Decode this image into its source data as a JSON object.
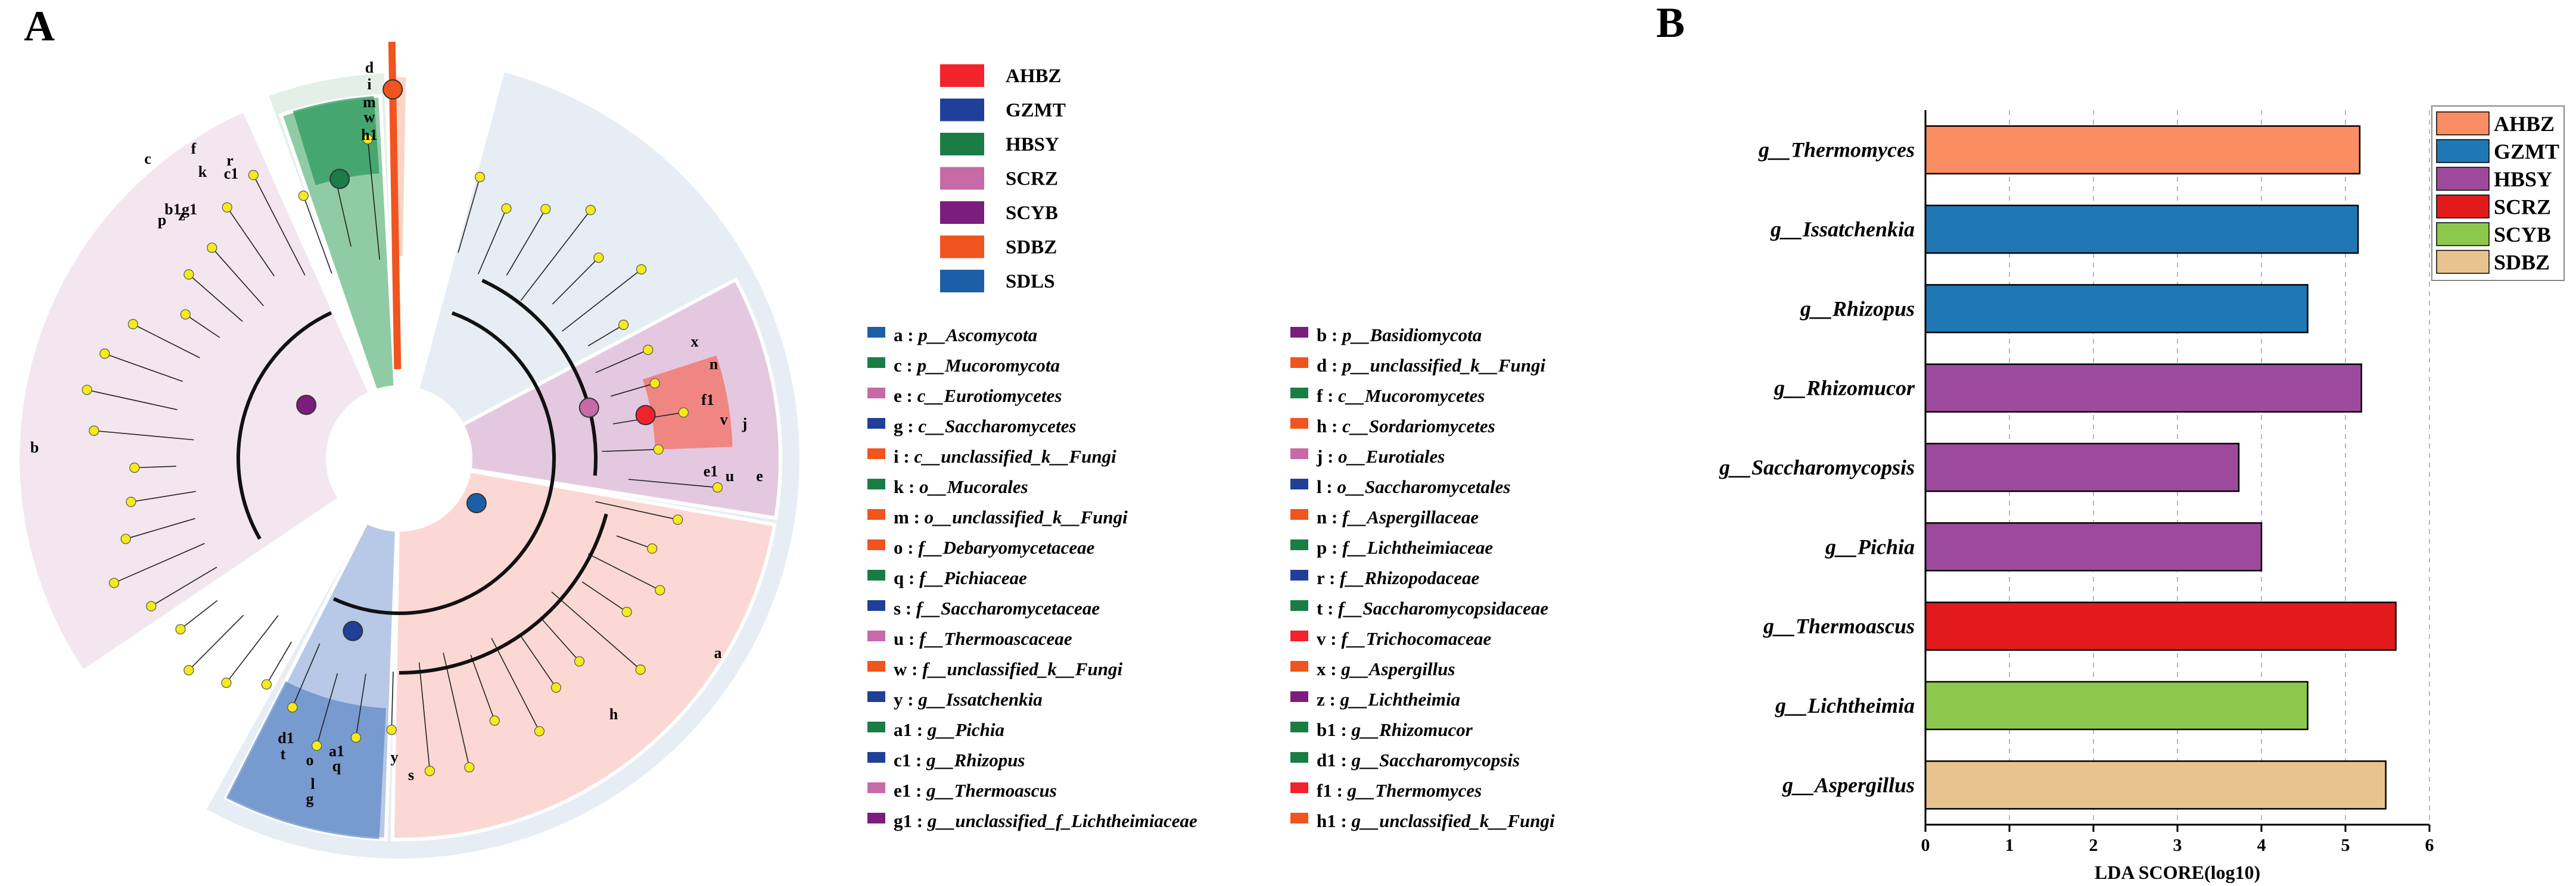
{
  "panels": {
    "a": "A",
    "b": "B"
  },
  "cladogram": {
    "group_legend": [
      {
        "name": "AHBZ",
        "color": "#f2232b"
      },
      {
        "name": "GZMT",
        "color": "#1f3f99"
      },
      {
        "name": "HBSY",
        "color": "#1a7d46"
      },
      {
        "name": "SCRZ",
        "color": "#c66aa8"
      },
      {
        "name": "SCYB",
        "color": "#7b1d7c"
      },
      {
        "name": "SDBZ",
        "color": "#f0541f"
      },
      {
        "name": "SDLS",
        "color": "#1d5fa6"
      }
    ],
    "taxa": [
      {
        "key": "a",
        "label": "p__Ascomycota",
        "color": "#1d5fa6"
      },
      {
        "key": "b",
        "label": "p__Basidiomycota",
        "color": "#7b1d7c"
      },
      {
        "key": "c",
        "label": "p__Mucoromycota",
        "color": "#1a7d46"
      },
      {
        "key": "d",
        "label": "p__unclassified_k__Fungi",
        "color": "#f0541f"
      },
      {
        "key": "e",
        "label": "c__Eurotiomycetes",
        "color": "#c66aa8"
      },
      {
        "key": "f",
        "label": "c__Mucoromycetes",
        "color": "#1a7d46"
      },
      {
        "key": "g",
        "label": "c__Saccharomycetes",
        "color": "#1f3f99"
      },
      {
        "key": "h",
        "label": "c__Sordariomycetes",
        "color": "#f0541f"
      },
      {
        "key": "i",
        "label": "c__unclassified_k__Fungi",
        "color": "#f0541f"
      },
      {
        "key": "j",
        "label": "o__Eurotiales",
        "color": "#c66aa8"
      },
      {
        "key": "k",
        "label": "o__Mucorales",
        "color": "#1a7d46"
      },
      {
        "key": "l",
        "label": "o__Saccharomycetales",
        "color": "#1f3f99"
      },
      {
        "key": "m",
        "label": "o__unclassified_k__Fungi",
        "color": "#f0541f"
      },
      {
        "key": "n",
        "label": "f__Aspergillaceae",
        "color": "#f0541f"
      },
      {
        "key": "o",
        "label": "f__Debaryomycetaceae",
        "color": "#f0541f"
      },
      {
        "key": "p",
        "label": "f__Lichtheimiaceae",
        "color": "#1a7d46"
      },
      {
        "key": "q",
        "label": "f__Pichiaceae",
        "color": "#1a7d46"
      },
      {
        "key": "r",
        "label": "f__Rhizopodaceae",
        "color": "#1f3f99"
      },
      {
        "key": "s",
        "label": "f__Saccharomycetaceae",
        "color": "#1f3f99"
      },
      {
        "key": "t",
        "label": "f__Saccharomycopsidaceae",
        "color": "#1a7d46"
      },
      {
        "key": "u",
        "label": "f__Thermoascaceae",
        "color": "#c66aa8"
      },
      {
        "key": "v",
        "label": "f__Trichocomaceae",
        "color": "#f2232b"
      },
      {
        "key": "w",
        "label": "f__unclassified_k__Fungi",
        "color": "#f0541f"
      },
      {
        "key": "x",
        "label": "g__Aspergillus",
        "color": "#f0541f"
      },
      {
        "key": "y",
        "label": "g__Issatchenkia",
        "color": "#1f3f99"
      },
      {
        "key": "z",
        "label": "g__Lichtheimia",
        "color": "#7b1d7c"
      },
      {
        "key": "a1",
        "label": "g__Pichia",
        "color": "#1a7d46"
      },
      {
        "key": "b1",
        "label": "g__Rhizomucor",
        "color": "#1a7d46"
      },
      {
        "key": "c1",
        "label": "g__Rhizopus",
        "color": "#1f3f99"
      },
      {
        "key": "d1",
        "label": "g__Saccharomycopsis",
        "color": "#1a7d46"
      },
      {
        "key": "e1",
        "label": "g__Thermoascus",
        "color": "#c66aa8"
      },
      {
        "key": "f1",
        "label": "g__Thermomyces",
        "color": "#f2232b"
      },
      {
        "key": "g1",
        "label": "g__unclassified_f_Lichtheimiaceae",
        "color": "#7b1d7c"
      },
      {
        "key": "h1",
        "label": "g__unclassified_k__Fungi",
        "color": "#f0541f"
      }
    ],
    "sector_letters": [
      "a",
      "b",
      "c",
      "d",
      "e",
      "f",
      "g",
      "h",
      "i",
      "j",
      "k",
      "l",
      "m",
      "n",
      "o",
      "p",
      "q",
      "r",
      "s",
      "t",
      "u",
      "v",
      "w",
      "x",
      "y",
      "z",
      "a1",
      "b1",
      "c1",
      "d1",
      "e1",
      "f1",
      "g1",
      "h1"
    ]
  },
  "chart_data": {
    "type": "bar",
    "orientation": "horizontal",
    "categories": [
      "g__Thermomyces",
      "g__Issatchenkia",
      "g__Rhizopus",
      "g__Rhizomucor",
      "g__Saccharomycopsis",
      "g__Pichia",
      "g__Thermoascus",
      "g__Lichtheimia",
      "g__Aspergillus"
    ],
    "values": [
      5.17,
      5.15,
      4.55,
      5.19,
      3.73,
      4.0,
      5.6,
      4.55,
      5.48
    ],
    "bar_groups": [
      "AHBZ",
      "GZMT",
      "GZMT",
      "HBSY",
      "HBSY",
      "HBSY",
      "SCRZ",
      "SCYB",
      "SDBZ"
    ],
    "xlabel": "LDA SCORE(log10)",
    "ylabel": "",
    "xlim": [
      0,
      6
    ],
    "xticks": [
      "0",
      "1",
      "2",
      "3",
      "4",
      "5",
      "6"
    ],
    "grid": "vertical dashed",
    "legend_position": "top-right",
    "legend": [
      {
        "name": "AHBZ",
        "color": "#fa8d62"
      },
      {
        "name": "GZMT",
        "color": "#1f78b4"
      },
      {
        "name": "HBSY",
        "color": "#9e4a9c"
      },
      {
        "name": "SCRZ",
        "color": "#e31a1c"
      },
      {
        "name": "SCYB",
        "color": "#8cc84b"
      },
      {
        "name": "SDBZ",
        "color": "#e8c38e"
      }
    ]
  }
}
